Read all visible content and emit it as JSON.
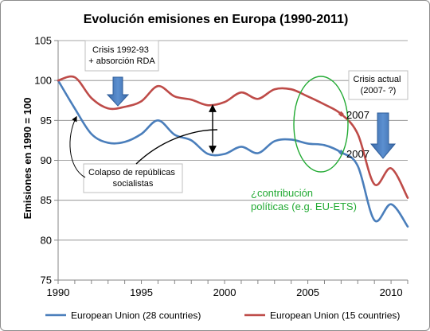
{
  "chart_data": {
    "type": "line",
    "title": "Evolución emisiones en Europa (1990-2011)",
    "xlabel": "",
    "ylabel": "Emisiones en 1990 = 100",
    "xlim": [
      1990,
      2011
    ],
    "ylim": [
      75,
      105
    ],
    "x_ticks": [
      1990,
      1995,
      2000,
      2005,
      2010
    ],
    "y_ticks": [
      75,
      80,
      85,
      90,
      95,
      100,
      105
    ],
    "grid": "horizontal",
    "legend_position": "bottom",
    "x": [
      1990,
      1991,
      1992,
      1993,
      1994,
      1995,
      1996,
      1997,
      1998,
      1999,
      2000,
      2001,
      2002,
      2003,
      2004,
      2005,
      2006,
      2007,
      2008,
      2009,
      2010,
      2011
    ],
    "series": [
      {
        "name": "European Union (28 countries)",
        "color": "#4a7ebb",
        "values": [
          100,
          96.5,
          93.3,
          92.2,
          92.3,
          93.3,
          95.0,
          93.2,
          92.5,
          90.8,
          90.8,
          91.7,
          90.9,
          92.4,
          92.6,
          92.1,
          91.9,
          91.0,
          89.3,
          82.5,
          84.5,
          81.7
        ]
      },
      {
        "name": "European Union (15 countries)",
        "color": "#be4b48",
        "values": [
          100,
          100.4,
          97.8,
          96.5,
          96.7,
          97.4,
          99.3,
          98.0,
          97.6,
          96.9,
          97.3,
          98.5,
          97.7,
          98.9,
          98.9,
          98.0,
          97.0,
          95.8,
          93.3,
          87.0,
          89.0,
          85.3
        ]
      }
    ],
    "annotations": {
      "crisis_1992": "Crisis 1992-93\n+ absorción RDA",
      "collapse": "Colapso de repúblicas\nsocialistas",
      "crisis_actual": "Crisis actual\n(2007- ?)",
      "policies": "¿contribución\npolíticas (e.g. EU-ETS)",
      "marker_2007_eu15": "2007",
      "marker_2007_eu28": "2007"
    }
  }
}
